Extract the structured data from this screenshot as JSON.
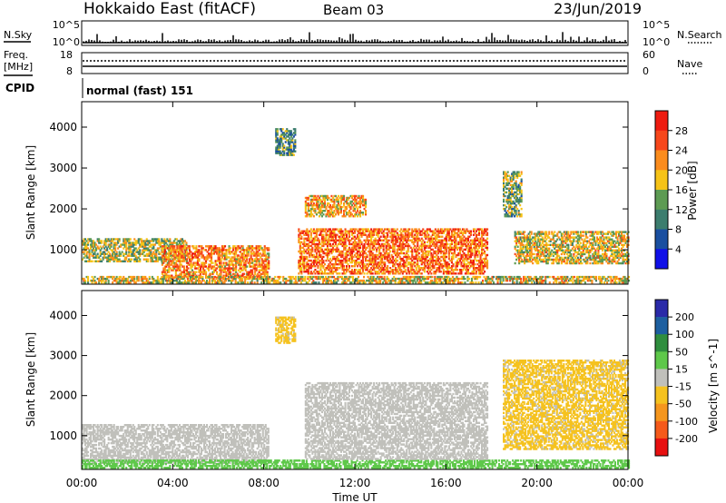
{
  "header": {
    "station": "Hokkaido East (fitACF)",
    "beam": "Beam 03",
    "date": "23/Jun/2019"
  },
  "strips": {
    "nsky_label": "N.Sky",
    "nsky_ticks": [
      "10^5",
      "10^0"
    ],
    "nsearch_label": "N.Search",
    "nsearch_ticks": [
      "10^5",
      "10^0"
    ],
    "freq_label_top": "Freq.",
    "freq_label_unit": "[MHz]",
    "freq_ticks": [
      "18",
      "8"
    ],
    "nave_label": "Nave",
    "nave_ticks": [
      "60",
      "0"
    ],
    "cpid_label": "CPID",
    "cpid_text": "normal (fast) 151"
  },
  "panels": {
    "power": {
      "ylabel": "Slant Range [km]",
      "yticks": [
        "4000",
        "3000",
        "2000",
        "1000"
      ],
      "cbar_label": "Power [dB]",
      "cbar_ticks": [
        "28",
        "24",
        "20",
        "16",
        "12",
        "8",
        "4"
      ],
      "colors": [
        "#ee1b10",
        "#f7471b",
        "#fb8c1d",
        "#f6c317",
        "#5d9b53",
        "#3c7d6e",
        "#1a4fa0",
        "#1010e8"
      ]
    },
    "velocity": {
      "ylabel": "Slant Range [km]",
      "yticks": [
        "4000",
        "3000",
        "2000",
        "1000"
      ],
      "cbar_label": "Velocity [m s^-1]",
      "cbar_ticks": [
        "200",
        "100",
        "50",
        "15",
        "-15",
        "-50",
        "-100",
        "-200"
      ],
      "colors": [
        "#2a2aa8",
        "#1d5fa0",
        "#2f8e3e",
        "#5ec84a",
        "#c0c0bb",
        "#f5c21f",
        "#f5961d",
        "#f55a1a",
        "#e81010"
      ]
    }
  },
  "xaxis": {
    "label": "Time UT",
    "ticks": [
      "00:00",
      "04:00",
      "08:00",
      "12:00",
      "16:00",
      "20:00",
      "00:00"
    ]
  },
  "chart_data": [
    {
      "type": "heatmap",
      "title": "Power",
      "x_range_hours": [
        0,
        24
      ],
      "y_range_km": [
        180,
        4600
      ],
      "units": "dB",
      "echo_regions": [
        {
          "t_start": 0.0,
          "t_end": 4.6,
          "r_min": 700,
          "r_max": 1250,
          "mean": 16
        },
        {
          "t_start": 3.5,
          "t_end": 8.2,
          "r_min": 300,
          "r_max": 1100,
          "mean": 22
        },
        {
          "t_start": 0.0,
          "t_end": 24.0,
          "r_min": 180,
          "r_max": 360,
          "mean": 18
        },
        {
          "t_start": 8.5,
          "t_end": 9.4,
          "r_min": 3300,
          "r_max": 3950,
          "mean": 12
        },
        {
          "t_start": 9.8,
          "t_end": 12.5,
          "r_min": 1800,
          "r_max": 2300,
          "mean": 20
        },
        {
          "t_start": 9.5,
          "t_end": 17.8,
          "r_min": 400,
          "r_max": 1500,
          "mean": 24
        },
        {
          "t_start": 18.5,
          "t_end": 19.3,
          "r_min": 1800,
          "r_max": 2900,
          "mean": 14
        },
        {
          "t_start": 19.0,
          "t_end": 24.0,
          "r_min": 650,
          "r_max": 1450,
          "mean": 18
        }
      ]
    },
    {
      "type": "heatmap",
      "title": "Velocity",
      "x_range_hours": [
        0,
        24
      ],
      "y_range_km": [
        180,
        4600
      ],
      "units": "m s^-1",
      "echo_regions": [
        {
          "t_start": 0.0,
          "t_end": 8.2,
          "r_min": 300,
          "r_max": 1250,
          "mean": 0
        },
        {
          "t_start": 0.0,
          "t_end": 24.0,
          "r_min": 180,
          "r_max": 400,
          "mean": 30
        },
        {
          "t_start": 8.5,
          "t_end": 9.4,
          "r_min": 3300,
          "r_max": 3950,
          "mean": -20
        },
        {
          "t_start": 9.8,
          "t_end": 17.8,
          "r_min": 400,
          "r_max": 2300,
          "mean": -5
        },
        {
          "t_start": 18.5,
          "t_end": 24.0,
          "r_min": 650,
          "r_max": 2900,
          "mean": -20
        }
      ]
    }
  ]
}
